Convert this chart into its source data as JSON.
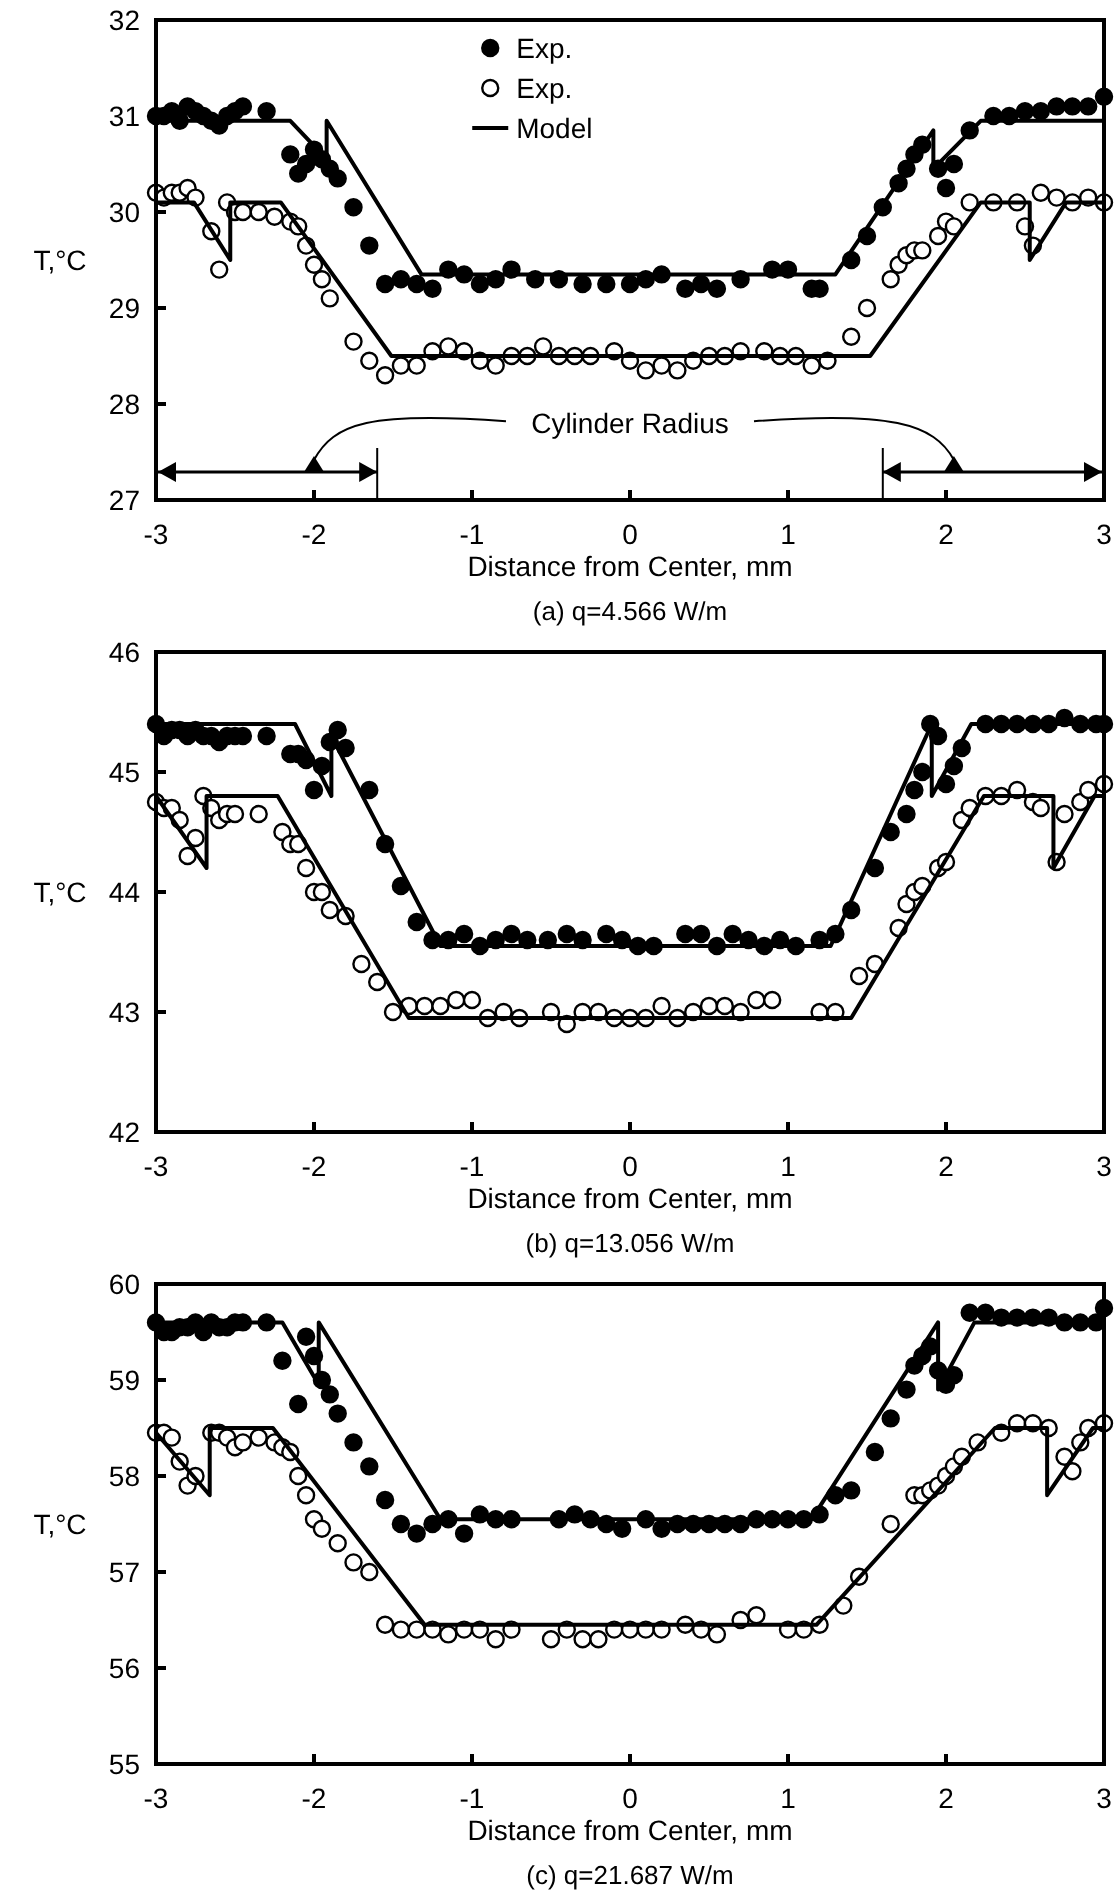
{
  "chart_data": [
    {
      "type": "scatter",
      "title": "(a) q=4.566 W/m",
      "xlabel": "Distance from Center, mm",
      "ylabel": "T,°C",
      "xlim": [
        -3,
        3
      ],
      "xticks": [
        -3,
        -2,
        -1,
        0,
        1,
        2,
        3
      ],
      "ylim": [
        27,
        32
      ],
      "yticks": [
        27,
        28,
        29,
        30,
        31,
        32
      ],
      "legend": "top",
      "annotations": [
        "Cylinder Radius"
      ],
      "series": [
        {
          "name": "Exp.",
          "color": "#000000",
          "marker": "circle",
          "x": [
            -3,
            -2.95,
            -2.9,
            -2.85,
            -2.8,
            -2.75,
            -2.7,
            -2.65,
            -2.6,
            -2.55,
            -2.5,
            -2.45,
            -2.3,
            -2.15,
            -2.1,
            -2.05,
            -2,
            -1.95,
            -1.9,
            -1.85,
            -1.75,
            -1.65,
            -1.55,
            -1.45,
            -1.35,
            -1.25,
            -1.15,
            -1.05,
            -0.95,
            -0.85,
            -0.75,
            -0.6,
            -0.45,
            -0.3,
            -0.15,
            0,
            0.1,
            0.2,
            0.35,
            0.45,
            0.55,
            0.7,
            0.9,
            1,
            1.15,
            1.2,
            1.4,
            1.5,
            1.6,
            1.7,
            1.75,
            1.8,
            1.85,
            1.95,
            2,
            2.05,
            2.15,
            2.3,
            2.4,
            2.5,
            2.6,
            2.7,
            2.8,
            2.9,
            3
          ],
          "values": [
            31,
            31,
            31.05,
            30.95,
            31.1,
            31.05,
            31,
            30.95,
            30.9,
            31,
            31.05,
            31.1,
            31.05,
            30.6,
            30.4,
            30.5,
            30.65,
            30.55,
            30.45,
            30.35,
            30.05,
            29.65,
            29.25,
            29.3,
            29.25,
            29.2,
            29.4,
            29.35,
            29.25,
            29.3,
            29.4,
            29.3,
            29.3,
            29.25,
            29.25,
            29.25,
            29.3,
            29.35,
            29.2,
            29.25,
            29.2,
            29.3,
            29.4,
            29.4,
            29.2,
            29.2,
            29.5,
            29.75,
            30.05,
            30.3,
            30.45,
            30.6,
            30.7,
            30.45,
            30.25,
            30.5,
            30.85,
            31,
            31,
            31.05,
            31.05,
            31.1,
            31.1,
            31.1,
            31.2
          ]
        },
        {
          "name": "Exp.",
          "color": "#ffffff",
          "marker": "circle",
          "x": [
            -3,
            -2.95,
            -2.9,
            -2.85,
            -2.8,
            -2.75,
            -2.65,
            -2.6,
            -2.55,
            -2.5,
            -2.45,
            -2.35,
            -2.25,
            -2.15,
            -2.1,
            -2.05,
            -2,
            -1.95,
            -1.9,
            -1.75,
            -1.65,
            -1.55,
            -1.45,
            -1.35,
            -1.25,
            -1.15,
            -1.05,
            -0.95,
            -0.85,
            -0.75,
            -0.65,
            -0.55,
            -0.45,
            -0.35,
            -0.25,
            -0.1,
            0,
            0.1,
            0.2,
            0.3,
            0.4,
            0.5,
            0.6,
            0.7,
            0.85,
            0.95,
            1.05,
            1.15,
            1.25,
            1.4,
            1.5,
            1.65,
            1.7,
            1.75,
            1.8,
            1.85,
            1.95,
            2,
            2.05,
            2.15,
            2.3,
            2.45,
            2.5,
            2.55,
            2.6,
            2.7,
            2.8,
            2.9,
            3
          ],
          "values": [
            30.2,
            30.15,
            30.2,
            30.2,
            30.25,
            30.15,
            29.8,
            29.4,
            30.1,
            30,
            30,
            30,
            29.95,
            29.9,
            29.85,
            29.65,
            29.45,
            29.3,
            29.1,
            28.65,
            28.45,
            28.3,
            28.4,
            28.4,
            28.55,
            28.6,
            28.55,
            28.45,
            28.4,
            28.5,
            28.5,
            28.6,
            28.5,
            28.5,
            28.5,
            28.55,
            28.45,
            28.35,
            28.4,
            28.35,
            28.45,
            28.5,
            28.5,
            28.55,
            28.55,
            28.5,
            28.5,
            28.4,
            28.45,
            28.7,
            29,
            29.3,
            29.45,
            29.55,
            29.6,
            29.6,
            29.75,
            29.9,
            29.85,
            30.1,
            30.1,
            30.1,
            29.85,
            29.65,
            30.2,
            30.15,
            30.1,
            30.15,
            30.1
          ]
        },
        {
          "type": "line",
          "name": "Model",
          "color": "#000000",
          "marker": "none",
          "line_style": "solid",
          "x": [
            -3,
            -2.15,
            -1.92,
            -1.92,
            -1.32,
            1.3,
            1.92,
            1.92,
            2.22,
            3
          ],
          "values": [
            30.95,
            30.95,
            30.55,
            30.95,
            29.35,
            29.35,
            30.85,
            30.45,
            30.95,
            30.95
          ]
        },
        {
          "type": "line",
          "color": "#000000",
          "marker": "none",
          "line_style": "solid",
          "x": [
            -3,
            -2.76,
            -2.53,
            -2.53,
            -2.21,
            -1.51,
            1.52,
            2.22,
            2.53,
            2.53,
            2.76,
            3
          ],
          "values": [
            30.1,
            30.1,
            29.5,
            30.1,
            30.1,
            28.5,
            28.5,
            30.1,
            30.1,
            29.5,
            30.1,
            30.1
          ]
        }
      ]
    },
    {
      "type": "scatter",
      "title": "(b)  q=13.056 W/m",
      "xlabel": "Distance from Center, mm",
      "ylabel": "T,°C",
      "xlim": [
        -3,
        3
      ],
      "xticks": [
        -3,
        -2,
        -1,
        0,
        1,
        2,
        3
      ],
      "ylim": [
        42,
        46
      ],
      "yticks": [
        42,
        43,
        44,
        45,
        46
      ],
      "series": [
        {
          "color": "#000000",
          "marker": "circle",
          "x": [
            -3,
            -2.95,
            -2.9,
            -2.85,
            -2.8,
            -2.75,
            -2.7,
            -2.65,
            -2.6,
            -2.55,
            -2.5,
            -2.45,
            -2.3,
            -2.15,
            -2.1,
            -2.05,
            -2,
            -1.95,
            -1.9,
            -1.85,
            -1.8,
            -1.65,
            -1.55,
            -1.45,
            -1.35,
            -1.25,
            -1.15,
            -1.05,
            -0.95,
            -0.85,
            -0.75,
            -0.65,
            -0.52,
            -0.4,
            -0.3,
            -0.15,
            -0.05,
            0.05,
            0.15,
            0.35,
            0.45,
            0.55,
            0.65,
            0.75,
            0.85,
            0.95,
            1.05,
            1.2,
            1.3,
            1.4,
            1.55,
            1.65,
            1.75,
            1.8,
            1.85,
            1.9,
            1.95,
            2,
            2.05,
            2.1,
            2.25,
            2.35,
            2.45,
            2.55,
            2.65,
            2.75,
            2.85,
            2.95,
            3
          ],
          "values": [
            45.4,
            45.3,
            45.35,
            45.35,
            45.3,
            45.35,
            45.3,
            45.3,
            45.25,
            45.3,
            45.3,
            45.3,
            45.3,
            45.15,
            45.15,
            45.1,
            44.85,
            45.05,
            45.25,
            45.35,
            45.2,
            44.85,
            44.4,
            44.05,
            43.75,
            43.6,
            43.6,
            43.65,
            43.55,
            43.6,
            43.65,
            43.6,
            43.6,
            43.65,
            43.6,
            43.65,
            43.6,
            43.55,
            43.55,
            43.65,
            43.65,
            43.55,
            43.65,
            43.6,
            43.55,
            43.6,
            43.55,
            43.6,
            43.65,
            43.85,
            44.2,
            44.5,
            44.65,
            44.85,
            45,
            45.4,
            45.3,
            44.9,
            45.05,
            45.2,
            45.4,
            45.4,
            45.4,
            45.4,
            45.4,
            45.45,
            45.4,
            45.4,
            45.4
          ]
        },
        {
          "color": "#ffffff",
          "marker": "circle",
          "x": [
            -3,
            -2.95,
            -2.9,
            -2.85,
            -2.8,
            -2.75,
            -2.7,
            -2.65,
            -2.6,
            -2.55,
            -2.5,
            -2.35,
            -2.2,
            -2.15,
            -2.1,
            -2.05,
            -2,
            -1.95,
            -1.9,
            -1.8,
            -1.7,
            -1.6,
            -1.5,
            -1.4,
            -1.3,
            -1.2,
            -1.1,
            -1,
            -0.9,
            -0.8,
            -0.7,
            -0.5,
            -0.4,
            -0.3,
            -0.2,
            -0.1,
            0,
            0.1,
            0.2,
            0.3,
            0.4,
            0.5,
            0.6,
            0.7,
            0.8,
            0.9,
            1.2,
            1.3,
            1.45,
            1.55,
            1.7,
            1.75,
            1.8,
            1.85,
            1.95,
            2,
            2.1,
            2.15,
            2.25,
            2.35,
            2.45,
            2.55,
            2.6,
            2.7,
            2.75,
            2.85,
            2.9,
            3
          ],
          "values": [
            44.75,
            44.7,
            44.7,
            44.6,
            44.3,
            44.45,
            44.8,
            44.7,
            44.6,
            44.65,
            44.65,
            44.65,
            44.5,
            44.4,
            44.4,
            44.2,
            44,
            44,
            43.85,
            43.8,
            43.4,
            43.25,
            43,
            43.05,
            43.05,
            43.05,
            43.1,
            43.1,
            42.95,
            43,
            42.95,
            43,
            42.9,
            43,
            43,
            42.95,
            42.95,
            42.95,
            43.05,
            42.95,
            43,
            43.05,
            43.05,
            43,
            43.1,
            43.1,
            43,
            43,
            43.3,
            43.4,
            43.7,
            43.9,
            44,
            44.05,
            44.2,
            44.25,
            44.6,
            44.7,
            44.8,
            44.8,
            44.85,
            44.75,
            44.7,
            44.25,
            44.65,
            44.75,
            44.85,
            44.9
          ]
        },
        {
          "type": "line",
          "color": "#000000",
          "marker": "none",
          "line_style": "solid",
          "x": [
            -3,
            -2.12,
            -1.89,
            -1.89,
            -1.2,
            1.27,
            1.91,
            1.91,
            2.16,
            3
          ],
          "values": [
            45.4,
            45.4,
            44.8,
            45.3,
            43.55,
            43.55,
            45.4,
            44.8,
            45.4,
            45.4
          ]
        },
        {
          "type": "line",
          "color": "#000000",
          "marker": "none",
          "line_style": "solid",
          "x": [
            -3,
            -2.68,
            -2.68,
            -2.23,
            -1.4,
            1.4,
            2.24,
            2.68,
            2.68,
            2.94,
            3
          ],
          "values": [
            44.8,
            44.2,
            44.8,
            44.8,
            42.95,
            42.95,
            44.8,
            44.8,
            44.2,
            44.8,
            44.8
          ]
        }
      ]
    },
    {
      "type": "scatter",
      "title": "(c) q=21.687 W/m",
      "xlabel": "Distance from Center, mm",
      "ylabel": "T,°C",
      "xlim": [
        -3,
        3
      ],
      "xticks": [
        -3,
        -2,
        -1,
        0,
        1,
        2,
        3
      ],
      "ylim": [
        55,
        60
      ],
      "yticks": [
        55,
        56,
        57,
        58,
        59,
        60
      ],
      "series": [
        {
          "color": "#000000",
          "marker": "circle",
          "x": [
            -3,
            -2.95,
            -2.9,
            -2.85,
            -2.8,
            -2.75,
            -2.7,
            -2.65,
            -2.6,
            -2.55,
            -2.5,
            -2.45,
            -2.3,
            -2.2,
            -2.1,
            -2.05,
            -2,
            -1.95,
            -1.9,
            -1.85,
            -1.75,
            -1.65,
            -1.55,
            -1.45,
            -1.35,
            -1.25,
            -1.15,
            -1.05,
            -0.95,
            -0.85,
            -0.75,
            -0.45,
            -0.35,
            -0.25,
            -0.15,
            -0.05,
            0.1,
            0.2,
            0.3,
            0.4,
            0.5,
            0.6,
            0.7,
            0.8,
            0.9,
            1,
            1.1,
            1.2,
            1.3,
            1.4,
            1.55,
            1.65,
            1.75,
            1.8,
            1.85,
            1.9,
            1.95,
            2,
            2.05,
            2.15,
            2.25,
            2.35,
            2.45,
            2.55,
            2.65,
            2.75,
            2.85,
            2.95,
            3
          ],
          "values": [
            59.6,
            59.5,
            59.5,
            59.55,
            59.55,
            59.6,
            59.5,
            59.6,
            59.55,
            59.55,
            59.6,
            59.6,
            59.6,
            59.2,
            58.75,
            59.45,
            59.25,
            59,
            58.85,
            58.65,
            58.35,
            58.1,
            57.75,
            57.5,
            57.4,
            57.5,
            57.55,
            57.4,
            57.6,
            57.55,
            57.55,
            57.55,
            57.6,
            57.55,
            57.5,
            57.45,
            57.55,
            57.45,
            57.5,
            57.5,
            57.5,
            57.5,
            57.5,
            57.55,
            57.55,
            57.55,
            57.55,
            57.6,
            57.8,
            57.85,
            58.25,
            58.6,
            58.9,
            59.15,
            59.25,
            59.35,
            59.1,
            58.95,
            59.05,
            59.7,
            59.7,
            59.65,
            59.65,
            59.65,
            59.65,
            59.6,
            59.6,
            59.6,
            59.75
          ]
        },
        {
          "color": "#ffffff",
          "marker": "circle",
          "x": [
            -3,
            -2.95,
            -2.9,
            -2.85,
            -2.8,
            -2.75,
            -2.65,
            -2.6,
            -2.55,
            -2.5,
            -2.45,
            -2.35,
            -2.25,
            -2.2,
            -2.15,
            -2.1,
            -2.05,
            -2,
            -1.95,
            -1.85,
            -1.75,
            -1.65,
            -1.55,
            -1.45,
            -1.35,
            -1.25,
            -1.15,
            -1.05,
            -0.95,
            -0.85,
            -0.75,
            -0.5,
            -0.4,
            -0.3,
            -0.2,
            -0.1,
            0,
            0.1,
            0.2,
            0.35,
            0.45,
            0.55,
            0.7,
            0.8,
            1,
            1.1,
            1.2,
            1.35,
            1.45,
            1.65,
            1.8,
            1.85,
            1.9,
            1.95,
            2,
            2.05,
            2.1,
            2.2,
            2.35,
            2.45,
            2.55,
            2.65,
            2.75,
            2.8,
            2.85,
            2.9,
            3
          ],
          "values": [
            58.45,
            58.45,
            58.4,
            58.15,
            57.9,
            58,
            58.45,
            58.45,
            58.4,
            58.3,
            58.35,
            58.4,
            58.35,
            58.3,
            58.25,
            58,
            57.8,
            57.55,
            57.45,
            57.3,
            57.1,
            57,
            56.45,
            56.4,
            56.4,
            56.4,
            56.35,
            56.4,
            56.4,
            56.3,
            56.4,
            56.3,
            56.4,
            56.3,
            56.3,
            56.4,
            56.4,
            56.4,
            56.4,
            56.45,
            56.4,
            56.35,
            56.5,
            56.55,
            56.4,
            56.4,
            56.45,
            56.65,
            56.95,
            57.5,
            57.8,
            57.8,
            57.85,
            57.9,
            58,
            58.1,
            58.2,
            58.35,
            58.45,
            58.55,
            58.55,
            58.5,
            58.2,
            58.05,
            58.35,
            58.5,
            58.55
          ]
        },
        {
          "type": "line",
          "color": "#000000",
          "marker": "none",
          "line_style": "solid",
          "x": [
            -3,
            -2.2,
            -1.97,
            -1.97,
            -1.2,
            1.15,
            1.95,
            1.95,
            2.18,
            3
          ],
          "values": [
            59.6,
            59.6,
            58.95,
            59.6,
            57.55,
            57.55,
            59.6,
            58.9,
            59.6,
            59.6
          ]
        },
        {
          "type": "line",
          "color": "#000000",
          "marker": "none",
          "line_style": "solid",
          "x": [
            -3,
            -2.66,
            -2.66,
            -2.26,
            -1.3,
            1.18,
            2.31,
            2.64,
            2.64,
            2.93,
            3
          ],
          "values": [
            58.45,
            57.8,
            58.5,
            58.5,
            56.45,
            56.45,
            58.5,
            58.5,
            57.8,
            58.5,
            58.5
          ]
        }
      ]
    }
  ]
}
